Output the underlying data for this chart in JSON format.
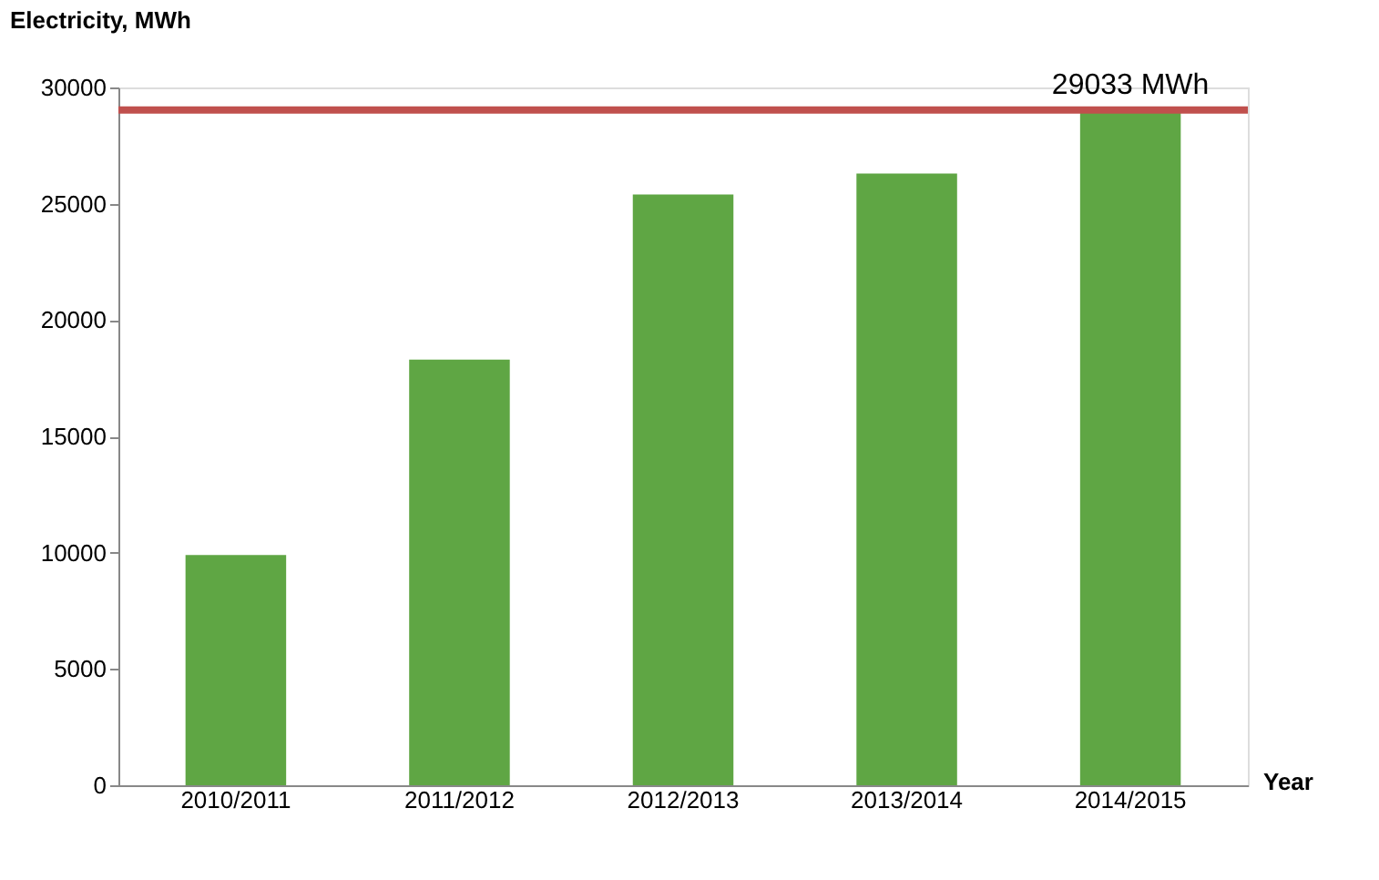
{
  "chart_data": {
    "type": "bar",
    "xlabel": "Year",
    "ylabel": "Electricity, MWh",
    "categories": [
      "2010/2011",
      "2011/2012",
      "2012/2013",
      "2013/2014",
      "2014/2015"
    ],
    "values": [
      9900,
      18300,
      25400,
      26300,
      29000
    ],
    "color": "#5fa644",
    "ylim": [
      0,
      30000
    ],
    "yticks": [
      0,
      5000,
      10000,
      15000,
      20000,
      25000,
      30000
    ],
    "grid": false,
    "ref_lines": [
      {
        "axis": "y",
        "value": 29033,
        "label": "29033 MWh",
        "color": "#c0504d"
      }
    ]
  }
}
